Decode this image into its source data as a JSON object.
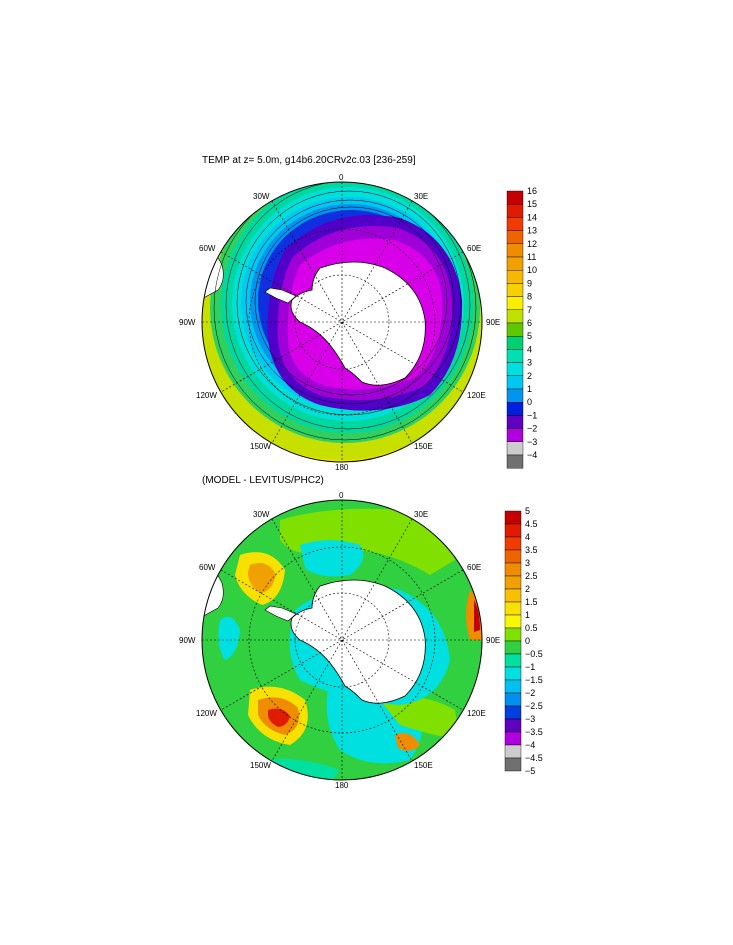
{
  "top_panel": {
    "title": "TEMP at z=   5.0m, g14b6.20CRv2c.03 [236-259]",
    "lon_labels": {
      "0": "0",
      "30E": "30E",
      "60E": "60E",
      "90E": "90E",
      "120E": "120E",
      "150E": "150E",
      "180": "180",
      "150W": "150W",
      "120W": "120W",
      "90W": "90W",
      "60W": "60W",
      "30W": "30W"
    },
    "colorbar": {
      "labels": [
        "16",
        "15",
        "14",
        "13",
        "12",
        "11",
        "10",
        "9",
        "8",
        "7",
        "6",
        "5",
        "4",
        "3",
        "2",
        "1",
        "0",
        "−1",
        "−2",
        "−3",
        "−4"
      ],
      "colors": [
        "#c40000",
        "#e01c00",
        "#f03c00",
        "#f06400",
        "#f08c00",
        "#f0a000",
        "#f8b800",
        "#f8d000",
        "#f8f000",
        "#c0e000",
        "#60c800",
        "#00d070",
        "#00e0b0",
        "#00e0e0",
        "#00c8f0",
        "#0096f0",
        "#0020e0",
        "#6000c0",
        "#b000e0",
        "#cccccc",
        "#707070"
      ]
    }
  },
  "bottom_panel": {
    "title": "(MODEL - LEVITUS/PHC2)",
    "lon_labels": {
      "0": "0",
      "30E": "30E",
      "60E": "60E",
      "90E": "90E",
      "120E": "120E",
      "150E": "150E",
      "180": "180",
      "150W": "150W",
      "120W": "120W",
      "90W": "90W",
      "60W": "60W",
      "30W": "30W"
    },
    "colorbar": {
      "labels": [
        "5",
        "4.5",
        "4",
        "3.5",
        "3",
        "2.5",
        "2",
        "1.5",
        "1",
        "0.5",
        "0",
        "−0.5",
        "−1",
        "−1.5",
        "−2",
        "−2.5",
        "−3",
        "−3.5",
        "−4",
        "−4.5",
        "−5"
      ],
      "colors": [
        "#c40000",
        "#e01c00",
        "#f03c00",
        "#f06400",
        "#f08c00",
        "#f0a000",
        "#f8c000",
        "#f8e000",
        "#f8f800",
        "#80e000",
        "#30d040",
        "#00e0a0",
        "#00e0e0",
        "#00c0f0",
        "#0090f0",
        "#0040e0",
        "#6000c0",
        "#b000e0",
        "#cccccc",
        "#707070"
      ]
    }
  }
}
